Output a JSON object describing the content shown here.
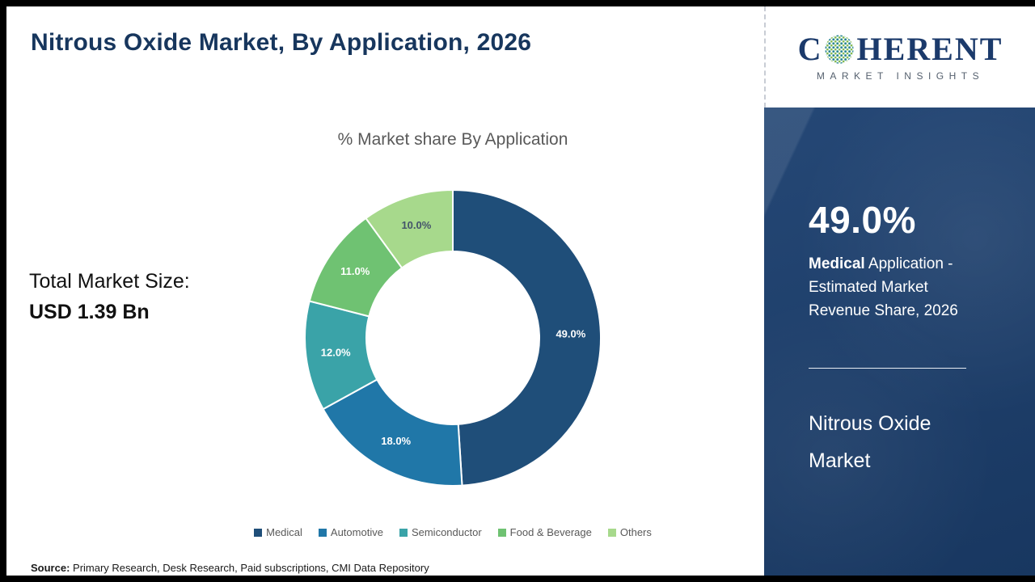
{
  "page": {
    "title": "Nitrous Oxide Market, By Application, 2026",
    "source_label": "Source:",
    "source_text": " Primary Research, Desk Research, Paid subscriptions, CMI Data Repository"
  },
  "left_stats": {
    "line1": "Total Market Size:",
    "line2": "USD 1.39 Bn"
  },
  "chart_data": {
    "type": "pie",
    "subtype": "donut",
    "title": "% Market share By Application",
    "categories": [
      "Medical",
      "Automotive",
      "Semiconductor",
      "Food & Beverage",
      "Others"
    ],
    "values": [
      49.0,
      18.0,
      12.0,
      11.0,
      10.0
    ],
    "labels": [
      "49.0%",
      "18.0%",
      "12.0%",
      "11.0%",
      "10.0%"
    ],
    "colors": [
      "#1f4e79",
      "#2077a8",
      "#3aa3a8",
      "#6fc272",
      "#a7d98c"
    ],
    "label_colors": [
      "#ffffff",
      "#ffffff",
      "#ffffff",
      "#ffffff",
      "#44546a"
    ],
    "start_angle": "top",
    "direction": "clockwise",
    "inner_radius_ratio": 0.58,
    "legend_position": "bottom"
  },
  "sidebar": {
    "logo": {
      "part1": "C",
      "part2": "HERENT",
      "subtitle": "MARKET INSIGHTS"
    },
    "stat_value": "49.0%",
    "stat_bold": "Medical",
    "stat_rest": " Application - Estimated Market Revenue Share, 2026",
    "market_name": "Nitrous Oxide Market"
  },
  "colors": {
    "title_navy": "#17365d",
    "panel_navy": "#1c4070",
    "logo_navy": "#1b3a6b",
    "text_gray": "#595959"
  }
}
